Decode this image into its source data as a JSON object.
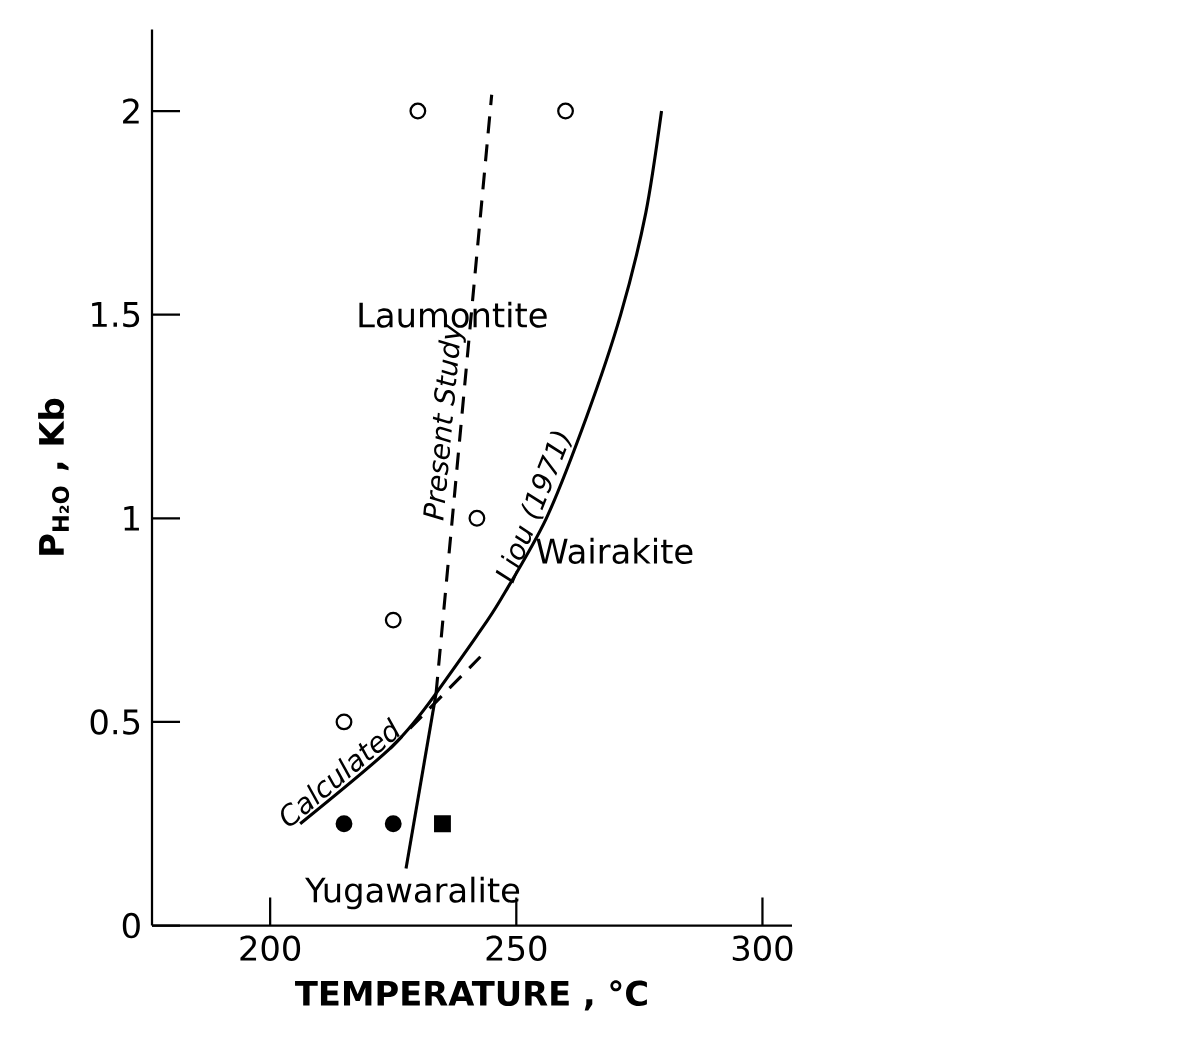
{
  "chart_data": {
    "type": "line",
    "xlabel": "**TEMPERATURE , °C**",
    "ylabel": "**P$_{H₂O}$ , Kb**",
    "xlim": [
      176,
      306
    ],
    "ylim": [
      0,
      2.2
    ],
    "xticks": [
      200,
      250,
      300
    ],
    "yticks": [
      0,
      {
        "value": 0.5,
        "label": "0.5"
      },
      1,
      {
        "value": 1.5,
        "label": "1.5"
      },
      2
    ],
    "annotations": [
      "Laumontite",
      "Wairakite",
      "Yugawaralite"
    ],
    "series": [
      {
        "name": "Present Study",
        "line_style": "dashed",
        "marker": "none",
        "color": "#000000",
        "x": [
          233.7,
          245
        ],
        "values": [
          0.57,
          2.04
        ]
      },
      {
        "name": "Liou (1971)",
        "line_style": "solid",
        "marker": "none",
        "color": "#000000",
        "x": [
          233.7,
          241.9,
          246.8,
          256.1,
          264.3,
          271.2,
          276.3,
          279.5
        ],
        "values": [
          0.57,
          0.71,
          0.8,
          1.0,
          1.25,
          1.5,
          1.75,
          2.0
        ]
      },
      {
        "name": "Calculated",
        "line_style": "solid",
        "marker": "none",
        "color": "#000000",
        "x": [
          206.1,
          224.8,
          233.7
        ],
        "values": [
          0.25,
          0.44,
          0.57
        ]
      },
      {
        "line_style": "dashed",
        "marker": "none",
        "color": "#000000",
        "x": [
          224.4,
          242.7
        ],
        "values": [
          0.435,
          0.66
        ]
      },
      {
        "line_style": "solid",
        "marker": "none",
        "color": "#000000",
        "x": [
          227.6,
          233.7
        ],
        "values": [
          0.14,
          0.57
        ]
      },
      {
        "type": "scatter",
        "marker": "circle",
        "color": "#000000",
        "x": [
          215,
          225,
          242,
          230,
          260
        ],
        "values": [
          0.5,
          0.75,
          1.0,
          2.0,
          2.0
        ]
      },
      {
        "type": "scatter",
        "marker": "circle",
        "color": "#000000",
        "x": [
          215,
          225
        ],
        "values": [
          0.25,
          0.25
        ]
      },
      {
        "type": "scatter",
        "marker": "square",
        "color": "#000000",
        "x": [
          235
        ],
        "values": [
          0.25
        ]
      }
    ]
  }
}
